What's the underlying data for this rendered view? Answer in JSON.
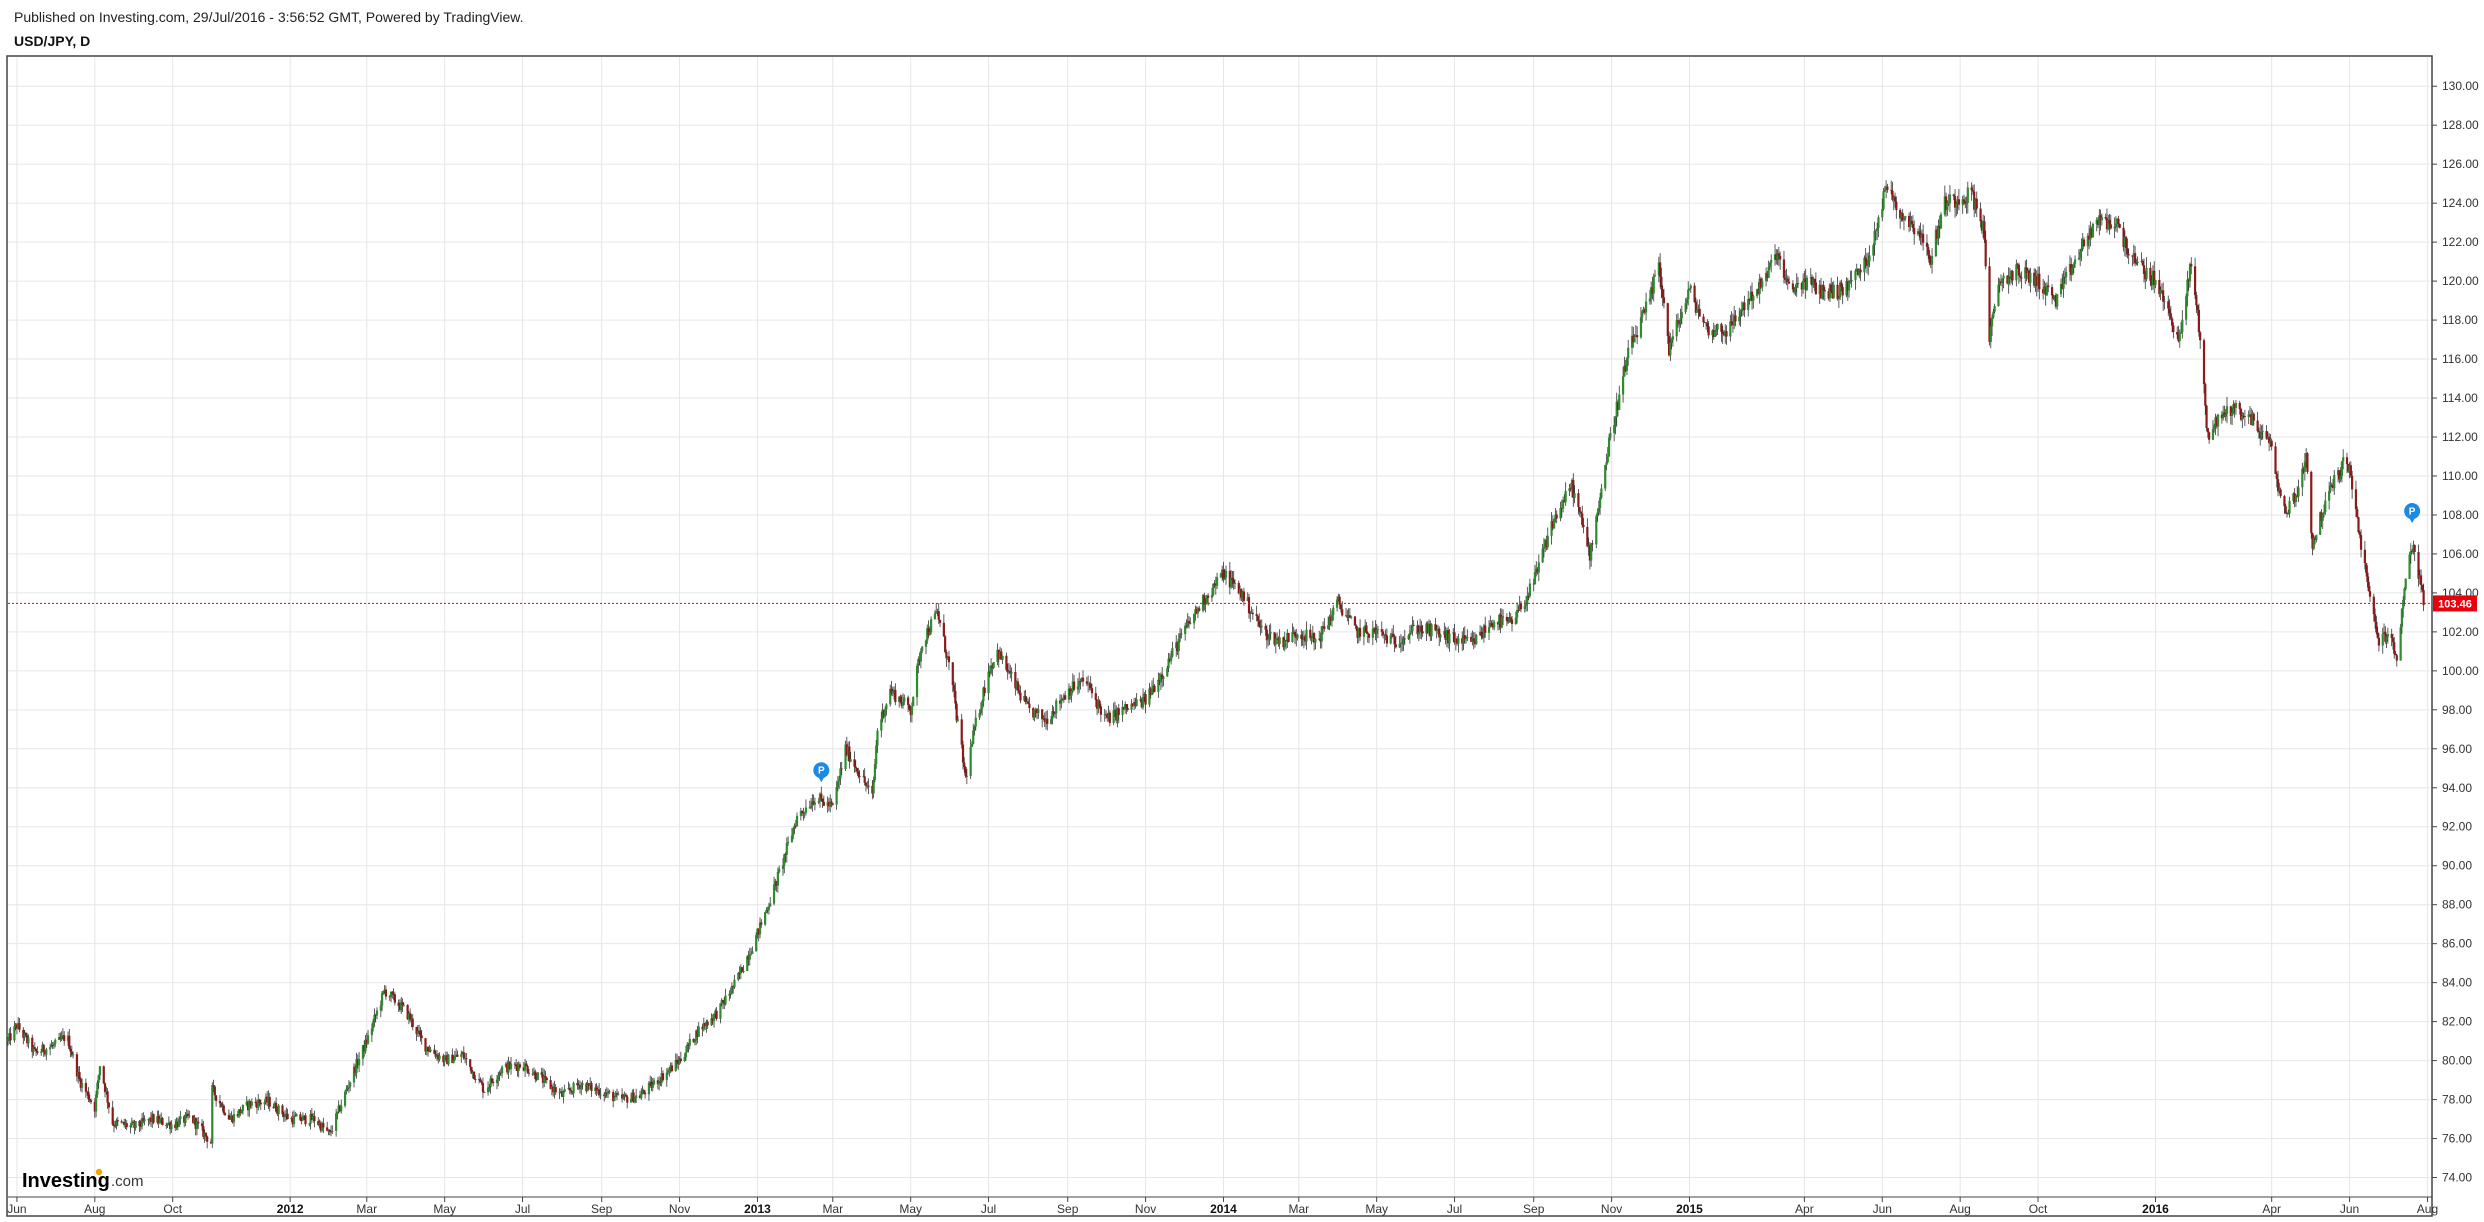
{
  "header": {
    "published": "Published on Investing.com, 29/Jul/2016 - 3:56:52 GMT, Powered by TradingView.",
    "symbol": "USD/JPY, D"
  },
  "logo": {
    "main": "Investing",
    "sub": ".com"
  },
  "chart_data": {
    "type": "candlestick",
    "title": "USD/JPY, D",
    "ylim": [
      73,
      131.5
    ],
    "y_ticks": [
      "74.00",
      "76.00",
      "78.00",
      "80.00",
      "82.00",
      "84.00",
      "86.00",
      "88.00",
      "90.00",
      "92.00",
      "94.00",
      "96.00",
      "98.00",
      "100.00",
      "102.00",
      "104.00",
      "106.00",
      "108.00",
      "110.00",
      "112.00",
      "114.00",
      "116.00",
      "118.00",
      "120.00",
      "122.00",
      "124.00",
      "126.00",
      "128.00",
      "130.00"
    ],
    "x_ticks": [
      {
        "label": "Jun",
        "date": "2011-06-01",
        "bold": false
      },
      {
        "label": "Aug",
        "date": "2011-08-01",
        "bold": false
      },
      {
        "label": "Oct",
        "date": "2011-10-01",
        "bold": false
      },
      {
        "label": "2012",
        "date": "2012-01-01",
        "bold": true
      },
      {
        "label": "Mar",
        "date": "2012-03-01",
        "bold": false
      },
      {
        "label": "May",
        "date": "2012-05-01",
        "bold": false
      },
      {
        "label": "Jul",
        "date": "2012-07-01",
        "bold": false
      },
      {
        "label": "Sep",
        "date": "2012-09-01",
        "bold": false
      },
      {
        "label": "Nov",
        "date": "2012-11-01",
        "bold": false
      },
      {
        "label": "2013",
        "date": "2013-01-01",
        "bold": true
      },
      {
        "label": "Mar",
        "date": "2013-03-01",
        "bold": false
      },
      {
        "label": "May",
        "date": "2013-05-01",
        "bold": false
      },
      {
        "label": "Jul",
        "date": "2013-07-01",
        "bold": false
      },
      {
        "label": "Sep",
        "date": "2013-09-01",
        "bold": false
      },
      {
        "label": "Nov",
        "date": "2013-11-01",
        "bold": false
      },
      {
        "label": "2014",
        "date": "2014-01-01",
        "bold": true
      },
      {
        "label": "Mar",
        "date": "2014-03-01",
        "bold": false
      },
      {
        "label": "May",
        "date": "2014-05-01",
        "bold": false
      },
      {
        "label": "Jul",
        "date": "2014-07-01",
        "bold": false
      },
      {
        "label": "Sep",
        "date": "2014-09-01",
        "bold": false
      },
      {
        "label": "Nov",
        "date": "2014-11-01",
        "bold": false
      },
      {
        "label": "2015",
        "date": "2015-01-01",
        "bold": true
      },
      {
        "label": "Apr",
        "date": "2015-04-01",
        "bold": false
      },
      {
        "label": "Jun",
        "date": "2015-06-01",
        "bold": false
      },
      {
        "label": "Aug",
        "date": "2015-08-01",
        "bold": false
      },
      {
        "label": "Oct",
        "date": "2015-10-01",
        "bold": false
      },
      {
        "label": "2016",
        "date": "2016-01-01",
        "bold": true
      },
      {
        "label": "Apr",
        "date": "2016-04-01",
        "bold": false
      },
      {
        "label": "Jun",
        "date": "2016-06-01",
        "bold": false
      },
      {
        "label": "Aug",
        "date": "2016-08-01",
        "bold": false
      }
    ],
    "x_range": [
      "2011-05-25",
      "2016-08-03"
    ],
    "price_path": [
      [
        "2011-05-25",
        81.0
      ],
      [
        "2011-06-01",
        81.8
      ],
      [
        "2011-06-15",
        80.4
      ],
      [
        "2011-07-01",
        80.8
      ],
      [
        "2011-07-10",
        81.3
      ],
      [
        "2011-07-20",
        79.0
      ],
      [
        "2011-08-01",
        77.6
      ],
      [
        "2011-08-05",
        79.8
      ],
      [
        "2011-08-15",
        76.8
      ],
      [
        "2011-09-01",
        76.6
      ],
      [
        "2011-09-15",
        77.0
      ],
      [
        "2011-10-01",
        76.7
      ],
      [
        "2011-10-15",
        77.1
      ],
      [
        "2011-10-31",
        75.8
      ],
      [
        "2011-11-01",
        78.5
      ],
      [
        "2011-11-15",
        77.0
      ],
      [
        "2011-12-01",
        77.8
      ],
      [
        "2011-12-15",
        77.9
      ],
      [
        "2012-01-01",
        77.0
      ],
      [
        "2012-01-20",
        77.0
      ],
      [
        "2012-02-01",
        76.2
      ],
      [
        "2012-02-20",
        79.5
      ],
      [
        "2012-03-01",
        81.0
      ],
      [
        "2012-03-15",
        83.6
      ],
      [
        "2012-04-01",
        82.5
      ],
      [
        "2012-04-15",
        80.8
      ],
      [
        "2012-05-01",
        80.0
      ],
      [
        "2012-05-15",
        80.3
      ],
      [
        "2012-06-01",
        78.5
      ],
      [
        "2012-06-15",
        79.6
      ],
      [
        "2012-07-01",
        79.8
      ],
      [
        "2012-07-15",
        79.1
      ],
      [
        "2012-08-01",
        78.2
      ],
      [
        "2012-08-15",
        78.8
      ],
      [
        "2012-09-01",
        78.4
      ],
      [
        "2012-09-15",
        78.0
      ],
      [
        "2012-10-01",
        78.2
      ],
      [
        "2012-10-15",
        79.0
      ],
      [
        "2012-11-01",
        80.0
      ],
      [
        "2012-11-15",
        81.5
      ],
      [
        "2012-12-01",
        82.5
      ],
      [
        "2012-12-15",
        84.0
      ],
      [
        "2013-01-01",
        86.5
      ],
      [
        "2013-01-15",
        89.0
      ],
      [
        "2013-02-01",
        92.5
      ],
      [
        "2013-02-15",
        93.5
      ],
      [
        "2013-03-01",
        93.0
      ],
      [
        "2013-03-11",
        96.0
      ],
      [
        "2013-03-20",
        95.0
      ],
      [
        "2013-04-01",
        93.5
      ],
      [
        "2013-04-05",
        97.0
      ],
      [
        "2013-04-15",
        99.0
      ],
      [
        "2013-05-01",
        98.0
      ],
      [
        "2013-05-10",
        101.5
      ],
      [
        "2013-05-22",
        103.0
      ],
      [
        "2013-06-01",
        100.0
      ],
      [
        "2013-06-13",
        94.5
      ],
      [
        "2013-06-20",
        97.0
      ],
      [
        "2013-07-01",
        100.0
      ],
      [
        "2013-07-08",
        101.0
      ],
      [
        "2013-08-01",
        98.0
      ],
      [
        "2013-08-15",
        97.5
      ],
      [
        "2013-09-01",
        99.0
      ],
      [
        "2013-09-15",
        99.5
      ],
      [
        "2013-10-01",
        97.5
      ],
      [
        "2013-10-15",
        98.0
      ],
      [
        "2013-11-01",
        98.5
      ],
      [
        "2013-11-15",
        100.0
      ],
      [
        "2013-12-01",
        102.0
      ],
      [
        "2013-12-15",
        103.5
      ],
      [
        "2014-01-01",
        105.0
      ],
      [
        "2014-01-15",
        104.0
      ],
      [
        "2014-02-01",
        102.0
      ],
      [
        "2014-02-15",
        101.5
      ],
      [
        "2014-03-01",
        102.0
      ],
      [
        "2014-03-15",
        101.5
      ],
      [
        "2014-04-01",
        103.5
      ],
      [
        "2014-04-15",
        102.0
      ],
      [
        "2014-05-01",
        102.0
      ],
      [
        "2014-05-15",
        101.5
      ],
      [
        "2014-06-01",
        102.2
      ],
      [
        "2014-06-15",
        102.0
      ],
      [
        "2014-07-01",
        101.6
      ],
      [
        "2014-07-15",
        101.4
      ],
      [
        "2014-08-01",
        102.6
      ],
      [
        "2014-08-15",
        102.4
      ],
      [
        "2014-09-01",
        104.5
      ],
      [
        "2014-09-15",
        107.5
      ],
      [
        "2014-10-01",
        109.5
      ],
      [
        "2014-10-15",
        106.0
      ],
      [
        "2014-10-31",
        112.0
      ],
      [
        "2014-11-15",
        116.5
      ],
      [
        "2014-12-01",
        119.0
      ],
      [
        "2014-12-08",
        121.0
      ],
      [
        "2014-12-16",
        116.5
      ],
      [
        "2015-01-01",
        119.5
      ],
      [
        "2015-01-15",
        117.5
      ],
      [
        "2015-02-01",
        117.5
      ],
      [
        "2015-02-15",
        119.0
      ],
      [
        "2015-03-01",
        120.0
      ],
      [
        "2015-03-10",
        121.5
      ],
      [
        "2015-03-20",
        119.5
      ],
      [
        "2015-04-01",
        120.0
      ],
      [
        "2015-04-15",
        119.5
      ],
      [
        "2015-05-01",
        119.5
      ],
      [
        "2015-05-20",
        121.0
      ],
      [
        "2015-06-05",
        125.0
      ],
      [
        "2015-06-15",
        123.5
      ],
      [
        "2015-07-01",
        122.5
      ],
      [
        "2015-07-08",
        121.0
      ],
      [
        "2015-07-20",
        124.0
      ],
      [
        "2015-08-10",
        124.5
      ],
      [
        "2015-08-20",
        122.5
      ],
      [
        "2015-08-24",
        117.0
      ],
      [
        "2015-09-01",
        120.0
      ],
      [
        "2015-09-15",
        120.5
      ],
      [
        "2015-10-01",
        120.0
      ],
      [
        "2015-10-15",
        119.0
      ],
      [
        "2015-10-30",
        121.0
      ],
      [
        "2015-11-15",
        123.0
      ],
      [
        "2015-12-01",
        123.0
      ],
      [
        "2015-12-15",
        121.0
      ],
      [
        "2016-01-01",
        120.0
      ],
      [
        "2016-01-20",
        117.0
      ],
      [
        "2016-01-29",
        121.0
      ],
      [
        "2016-02-05",
        117.0
      ],
      [
        "2016-02-11",
        112.0
      ],
      [
        "2016-02-20",
        113.0
      ],
      [
        "2016-03-01",
        113.5
      ],
      [
        "2016-03-15",
        113.0
      ],
      [
        "2016-04-01",
        111.5
      ],
      [
        "2016-04-10",
        108.0
      ],
      [
        "2016-04-20",
        109.0
      ],
      [
        "2016-04-28",
        111.0
      ],
      [
        "2016-05-03",
        106.5
      ],
      [
        "2016-05-15",
        109.0
      ],
      [
        "2016-05-30",
        111.0
      ],
      [
        "2016-06-10",
        106.5
      ],
      [
        "2016-06-16",
        104.0
      ],
      [
        "2016-06-24",
        101.5
      ],
      [
        "2016-07-01",
        102.0
      ],
      [
        "2016-07-08",
        100.5
      ],
      [
        "2016-07-15",
        105.0
      ],
      [
        "2016-07-21",
        106.5
      ],
      [
        "2016-07-29",
        103.46
      ]
    ],
    "last_price": "103.46",
    "current_line": 103.46,
    "markers": [
      {
        "label": "P",
        "date": "2013-02-20",
        "price": 94.9
      },
      {
        "label": "P",
        "date": "2016-07-20",
        "price": 108.2
      }
    ],
    "colors": {
      "up": "#2e8b2e",
      "down": "#8b1a1a",
      "wick": "#333333",
      "grid": "#e6e6e6",
      "price_line": "#e8000b",
      "marker": "#1e88e5"
    },
    "grid": true
  }
}
